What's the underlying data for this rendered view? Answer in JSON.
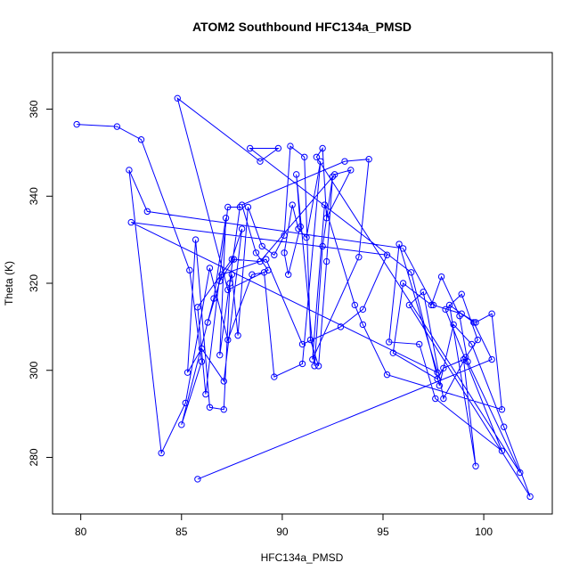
{
  "chart_data": {
    "type": "line",
    "title": "ATOM2 Southbound HFC134a_PMSD",
    "xlabel": "HFC134a_PMSD",
    "ylabel": "Theta (K)",
    "xlim": [
      78.6,
      103.4
    ],
    "ylim": [
      267,
      373
    ],
    "xticks": [
      80,
      85,
      90,
      95,
      100
    ],
    "yticks": [
      280,
      300,
      320,
      340,
      360
    ],
    "x_tick_labels": [
      "80",
      "85",
      "90",
      "95",
      "100"
    ],
    "y_tick_labels": [
      "280",
      "300",
      "320",
      "340",
      "360"
    ],
    "grid": false,
    "legend": "none",
    "series_color": "#0000ff",
    "series": [
      {
        "x": [
          79.8,
          81.8,
          83.0,
          85.4,
          86.0,
          85.0,
          86.6,
          87.2,
          86.9,
          87.9,
          87.3,
          86.2,
          85.8,
          87.5,
          88.0,
          87.1,
          86.0,
          85.3,
          85.7,
          86.4,
          87.1,
          87.4,
          87.5,
          87.8,
          88.3,
          89.0,
          89.6,
          90.1,
          90.4,
          91.1,
          91.4,
          91.8,
          92.2,
          92.5,
          92.0,
          91.6,
          90.7,
          90.9,
          90.3,
          90.1,
          90.5,
          90.8,
          91.2,
          91.9,
          91.0,
          89.6,
          89.1,
          88.5,
          87.3,
          86.4,
          85.2,
          84.0,
          82.4,
          83.3,
          96.0,
          97.5,
          98.9,
          99.6,
          100.4,
          100.9,
          95.2,
          94.0,
          93.6,
          92.1,
          91.5,
          93.8,
          94.3,
          93.1,
          88.0,
          88.7,
          89.3,
          87.3,
          84.8,
          88.9,
          89.8,
          88.4,
          96.4,
          97.8,
          98.5,
          99.4,
          101.0,
          102.3,
          96.3,
          97.0,
          98.0,
          99.1,
          99.7,
          98.9,
          98.1,
          100.9,
          97.6,
          96.8,
          95.3,
          95.8,
          97.7,
          82.5,
          95.2,
          94.0,
          92.9,
          91.0,
          89.2,
          87.0,
          86.3,
          86.9,
          87.6,
          88.9,
          92.6,
          93.4,
          92.2,
          92.0,
          91.7,
          101.8,
          99.2,
          98.8,
          97.9,
          97.4,
          96.0,
          95.5,
          97.7,
          98.0,
          99.0,
          99.6,
          98.3,
          99.5,
          100.4,
          85.8
        ],
        "y": [
          356.5,
          356.0,
          353.0,
          323.0,
          302.0,
          287.5,
          316.5,
          335.0,
          303.5,
          337.5,
          337.5,
          294.5,
          314.5,
          325.5,
          332.5,
          297.5,
          305.0,
          299.5,
          330.0,
          291.5,
          291.0,
          320.0,
          322.0,
          308.0,
          337.5,
          328.5,
          326.5,
          331.0,
          351.5,
          349.0,
          307.0,
          301.0,
          325.0,
          344.5,
          328.5,
          301.0,
          345.0,
          333.0,
          322.0,
          327.0,
          338.0,
          332.5,
          330.5,
          348.0,
          301.5,
          298.5,
          322.5,
          322.0,
          307.0,
          323.5,
          292.5,
          281.0,
          346.0,
          336.5,
          328.0,
          315.0,
          313.0,
          311.0,
          313.0,
          291.0,
          299.0,
          310.5,
          315.0,
          338.0,
          302.5,
          326.0,
          348.5,
          348.0,
          338.0,
          327.0,
          323.0,
          318.5,
          362.5,
          348.0,
          351.0,
          351.0,
          322.5,
          296.5,
          310.5,
          306.0,
          287.0,
          271.0,
          315.0,
          318.0,
          293.5,
          303.0,
          307.0,
          317.5,
          314.0,
          281.5,
          293.5,
          306.0,
          306.5,
          329.0,
          299.5,
          334.0,
          326.5,
          314.0,
          310.0,
          306.0,
          325.5,
          322.0,
          311.0,
          320.5,
          325.5,
          325.0,
          345.0,
          346.0,
          335.0,
          351.0,
          349.0,
          276.5,
          302.0,
          312.5,
          321.5,
          315.0,
          320.0,
          304.0,
          298.0,
          300.5,
          302.5,
          278.0,
          315.0,
          311.0,
          302.5,
          275.0
        ]
      }
    ]
  }
}
